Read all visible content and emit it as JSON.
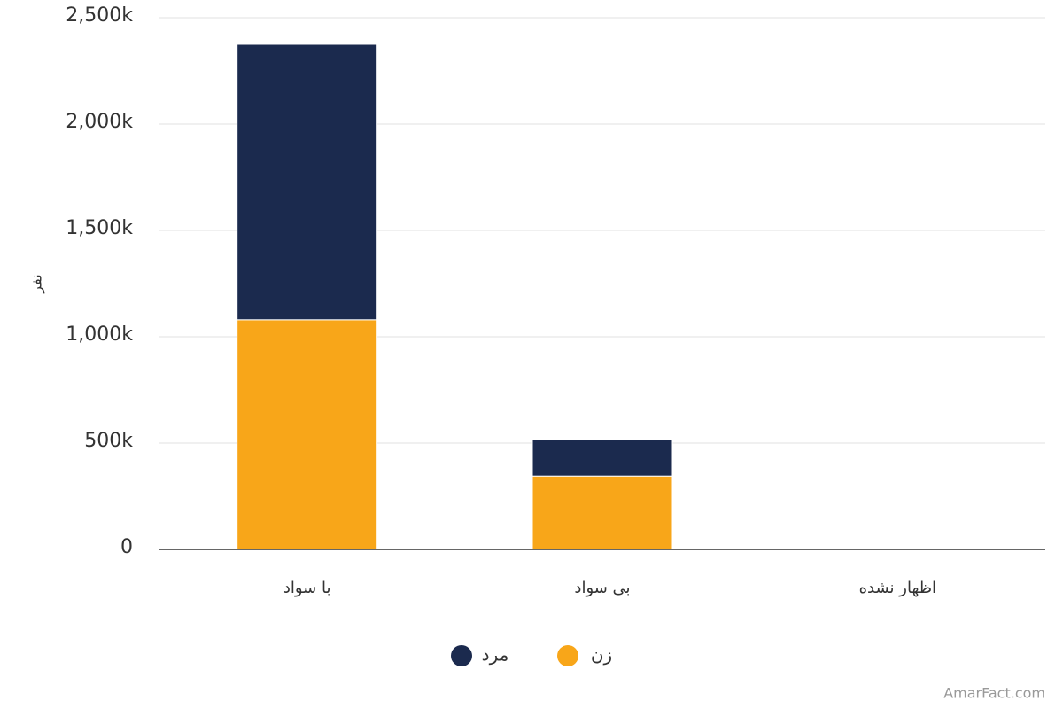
{
  "chart_data": {
    "type": "bar",
    "stacked": true,
    "y_label": "نفر",
    "categories": [
      "با سواد",
      "بی سواد",
      "اظهار نشده"
    ],
    "series": [
      {
        "name": "زن",
        "color": "#f8a619",
        "values": [
          1080000,
          345000,
          0
        ]
      },
      {
        "name": "مرد",
        "color": "#1b2a4e",
        "values": [
          1295000,
          172000,
          0
        ]
      }
    ],
    "ylim": [
      0,
      2500000
    ],
    "yticks": [
      0,
      {
        "value": 500000,
        "label": "500k"
      },
      {
        "value": 1000000,
        "label": "1,000k"
      },
      {
        "value": 1500000,
        "label": "1,500k"
      },
      {
        "value": 2000000,
        "label": "2,000k"
      },
      {
        "value": 2500000,
        "label": "2,500k"
      }
    ],
    "grid": true
  },
  "watermark": "AmarFact.com"
}
